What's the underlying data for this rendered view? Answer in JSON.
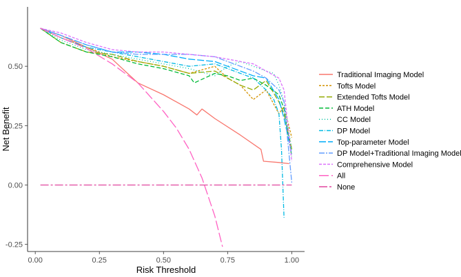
{
  "chart_data": {
    "type": "line",
    "title": "",
    "xlabel": "Risk Threshold",
    "ylabel": "Net Benefit",
    "xlim": [
      -0.03,
      1.05
    ],
    "ylim": [
      -0.28,
      0.75
    ],
    "xticks": [
      0.0,
      0.25,
      0.5,
      0.75,
      1.0
    ],
    "xtick_labels": [
      "0.00",
      "0.25",
      "0.50",
      "0.75",
      "1.00"
    ],
    "yticks": [
      -0.25,
      0.0,
      0.25,
      0.5
    ],
    "ytick_labels": [
      "-0.25",
      "0.00",
      "0.25",
      "0.50"
    ],
    "grid": false,
    "legend_position": "right",
    "series": [
      {
        "name": "Traditional Imaging Model",
        "color": "#F8766D",
        "dash": "",
        "x": [
          0.02,
          0.1,
          0.2,
          0.3,
          0.35,
          0.4,
          0.5,
          0.6,
          0.63,
          0.65,
          0.7,
          0.8,
          0.88,
          0.89,
          0.95,
          0.99
        ],
        "y": [
          0.66,
          0.63,
          0.58,
          0.53,
          0.48,
          0.43,
          0.38,
          0.32,
          0.295,
          0.32,
          0.28,
          0.21,
          0.15,
          0.1,
          0.095,
          0.09
        ]
      },
      {
        "name": "Tofts Model",
        "color": "#D39200",
        "dash": "3,2",
        "x": [
          0.02,
          0.1,
          0.2,
          0.3,
          0.4,
          0.5,
          0.6,
          0.7,
          0.75,
          0.8,
          0.85,
          0.9,
          0.95,
          0.97,
          1.0
        ],
        "y": [
          0.66,
          0.62,
          0.58,
          0.54,
          0.52,
          0.5,
          0.47,
          0.5,
          0.45,
          0.42,
          0.36,
          0.4,
          0.3,
          0.33,
          0.2
        ]
      },
      {
        "name": "Extended Tofts Model",
        "color": "#93AA00",
        "dash": "8,3",
        "x": [
          0.02,
          0.1,
          0.2,
          0.3,
          0.4,
          0.5,
          0.6,
          0.7,
          0.75,
          0.8,
          0.85,
          0.9,
          0.95,
          0.97,
          1.0
        ],
        "y": [
          0.66,
          0.6,
          0.56,
          0.55,
          0.52,
          0.5,
          0.47,
          0.48,
          0.45,
          0.42,
          0.4,
          0.44,
          0.35,
          0.3,
          0.15
        ]
      },
      {
        "name": "ATH Model",
        "color": "#00BA38",
        "dash": "6,3",
        "x": [
          0.02,
          0.1,
          0.2,
          0.3,
          0.4,
          0.5,
          0.6,
          0.62,
          0.7,
          0.75,
          0.8,
          0.85,
          0.9,
          0.95,
          0.97,
          1.0
        ],
        "y": [
          0.66,
          0.6,
          0.56,
          0.54,
          0.51,
          0.49,
          0.46,
          0.43,
          0.47,
          0.46,
          0.44,
          0.45,
          0.42,
          0.38,
          0.32,
          0.12
        ]
      },
      {
        "name": "CC Model",
        "color": "#00C19F",
        "dash": "1,3",
        "x": [
          0.02,
          0.1,
          0.2,
          0.3,
          0.4,
          0.5,
          0.6,
          0.7,
          0.75,
          0.8,
          0.85,
          0.9,
          0.93,
          0.95,
          0.97,
          1.0
        ],
        "y": [
          0.66,
          0.61,
          0.57,
          0.55,
          0.53,
          0.51,
          0.49,
          0.46,
          0.5,
          0.52,
          0.5,
          0.48,
          0.47,
          0.42,
          0.35,
          0.15
        ]
      },
      {
        "name": "DP Model",
        "color": "#00B9E3",
        "dash": "6,2,1,2",
        "x": [
          0.02,
          0.1,
          0.2,
          0.3,
          0.4,
          0.5,
          0.6,
          0.7,
          0.75,
          0.8,
          0.85,
          0.9,
          0.93,
          0.95,
          0.96,
          0.97
        ],
        "y": [
          0.66,
          0.62,
          0.58,
          0.56,
          0.54,
          0.52,
          0.5,
          0.51,
          0.49,
          0.47,
          0.45,
          0.4,
          0.36,
          0.3,
          0.15,
          -0.14
        ]
      },
      {
        "name": "Top-parameter Model",
        "color": "#00ADFA",
        "dash": "10,3",
        "x": [
          0.02,
          0.1,
          0.2,
          0.3,
          0.4,
          0.5,
          0.6,
          0.7,
          0.75,
          0.8,
          0.85,
          0.9,
          0.95,
          0.97,
          1.0
        ],
        "y": [
          0.66,
          0.63,
          0.59,
          0.56,
          0.56,
          0.55,
          0.53,
          0.52,
          0.5,
          0.48,
          0.46,
          0.45,
          0.36,
          0.28,
          0.13
        ]
      },
      {
        "name": "DP Model+Traditional Imaging Model",
        "color": "#619CFF",
        "dash": "8,2,2,2",
        "x": [
          0.02,
          0.1,
          0.2,
          0.3,
          0.4,
          0.5,
          0.6,
          0.7,
          0.75,
          0.8,
          0.85,
          0.9,
          0.95,
          0.97,
          1.0
        ],
        "y": [
          0.66,
          0.63,
          0.59,
          0.56,
          0.55,
          0.55,
          0.55,
          0.54,
          0.52,
          0.5,
          0.48,
          0.45,
          0.4,
          0.35,
          0.01
        ]
      },
      {
        "name": "Comprehensive Model",
        "color": "#DB72FB",
        "dash": "4,2",
        "x": [
          0.02,
          0.1,
          0.2,
          0.3,
          0.4,
          0.5,
          0.6,
          0.7,
          0.75,
          0.8,
          0.85,
          0.9,
          0.95,
          0.97,
          1.0
        ],
        "y": [
          0.66,
          0.64,
          0.6,
          0.57,
          0.56,
          0.56,
          0.55,
          0.54,
          0.53,
          0.52,
          0.51,
          0.48,
          0.45,
          0.4,
          0.1
        ]
      },
      {
        "name": "All",
        "color": "#FF61C3",
        "dash": "14,4",
        "x": [
          0.02,
          0.1,
          0.2,
          0.3,
          0.4,
          0.5,
          0.55,
          0.6,
          0.65,
          0.7,
          0.73
        ],
        "y": [
          0.66,
          0.62,
          0.575,
          0.51,
          0.43,
          0.31,
          0.24,
          0.15,
          0.03,
          -0.13,
          -0.26
        ]
      },
      {
        "name": "None",
        "color": "#E0459E",
        "dash": "12,3,3,3",
        "x": [
          0.02,
          1.0
        ],
        "y": [
          0.0,
          0.0
        ]
      }
    ]
  }
}
